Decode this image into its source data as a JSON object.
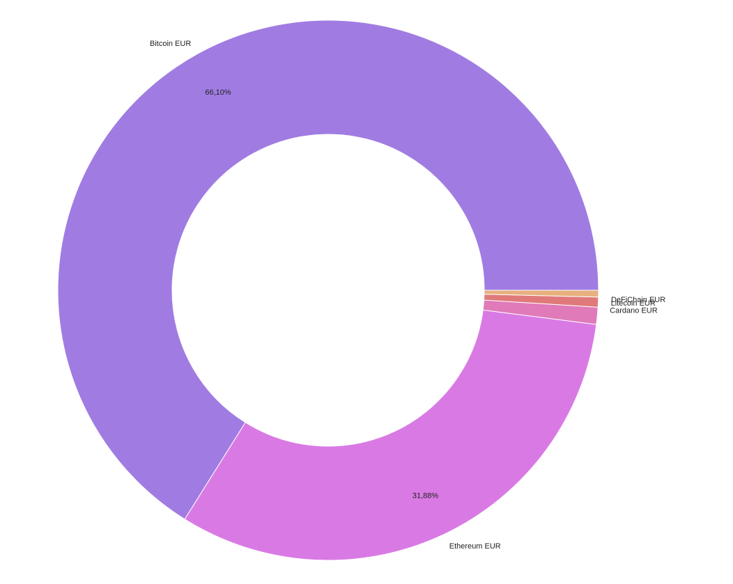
{
  "chart_data": {
    "type": "pie",
    "variant": "donut",
    "categories": [
      "Bitcoin EUR",
      "Ethereum EUR",
      "Cardano EUR",
      "Litecoin EUR",
      "DeFiChain EUR"
    ],
    "values": [
      66.1,
      31.88,
      1.02,
      0.6,
      0.4
    ],
    "value_labels": [
      "66,10%",
      "31,88%",
      "",
      "",
      ""
    ],
    "colors": [
      "#a07ce2",
      "#d97ae4",
      "#e07ab9",
      "#e07a7a",
      "#e8b07e"
    ],
    "legend": "none"
  }
}
